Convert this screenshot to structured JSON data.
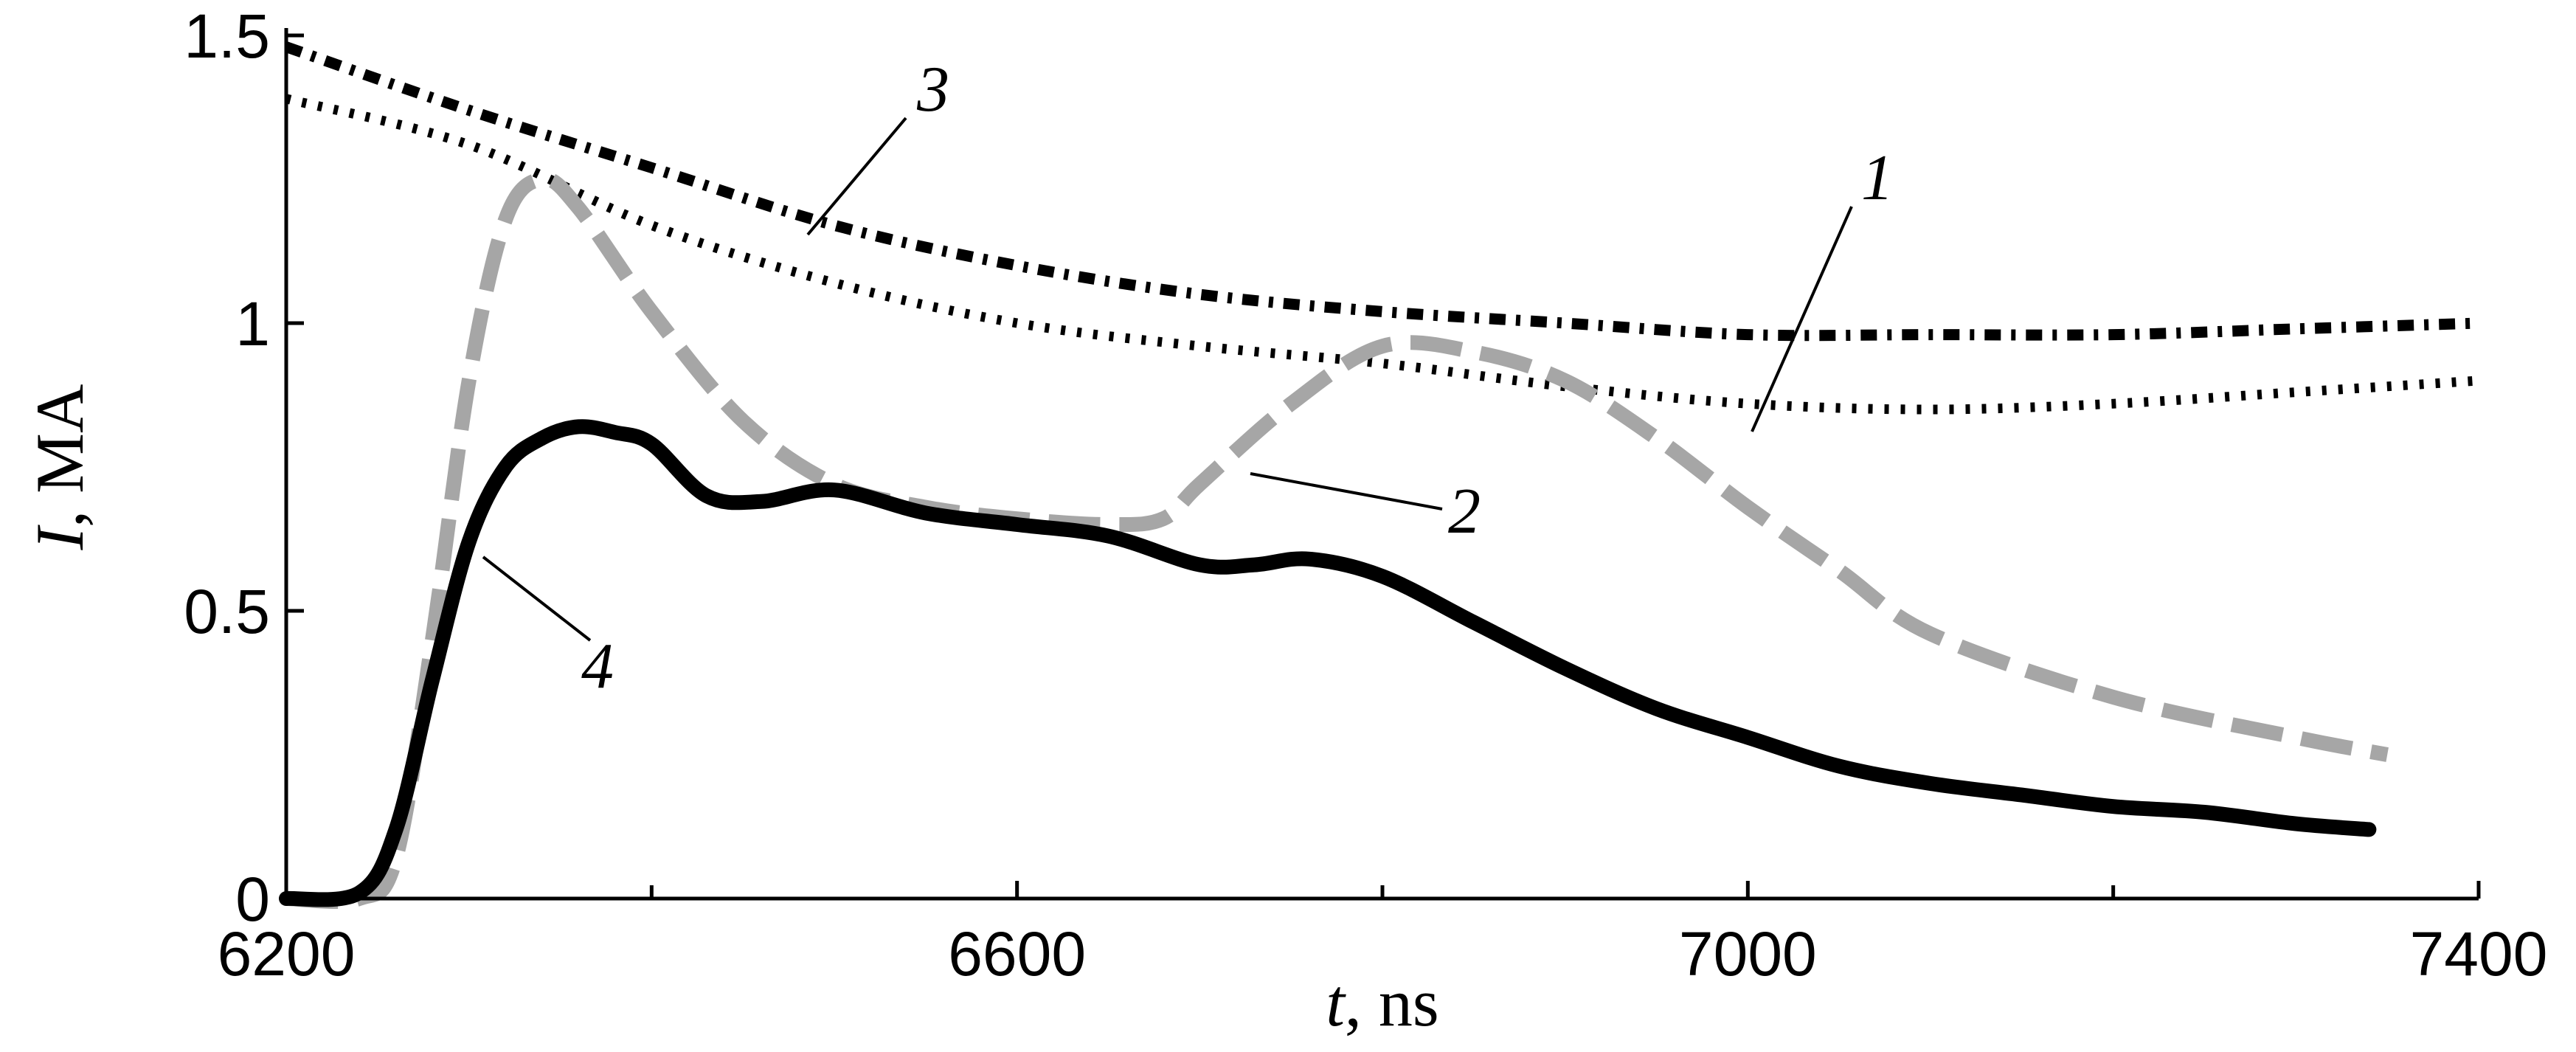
{
  "chart_data": {
    "type": "line",
    "xlabel": "t, ns",
    "xlabel_var": "t",
    "xlabel_unit": ", ns",
    "ylabel": "I, MA",
    "ylabel_var": "I",
    "ylabel_unit": ", MA",
    "xlim": [
      6200,
      7400
    ],
    "ylim": [
      0,
      1.5
    ],
    "xticks": [
      6200,
      6600,
      7000,
      7400
    ],
    "xtick_labels": [
      "6200",
      "6600",
      "7000",
      "7400"
    ],
    "x_minor_ticks": [
      6400,
      6800,
      7200
    ],
    "yticks": [
      0,
      0.5,
      1,
      1.5
    ],
    "ytick_labels": [
      "0",
      "0.5",
      "1",
      "1.5"
    ],
    "grid": false,
    "legend": "none",
    "series": [
      {
        "name": "1",
        "style": "dotted",
        "color": "#000000",
        "x": [
          6200,
          6300,
          6400,
          6500,
          6600,
          6700,
          6800,
          6900,
          7000,
          7100,
          7200,
          7300,
          7400
        ],
        "y": [
          1.39,
          1.31,
          1.17,
          1.07,
          1.0,
          0.96,
          0.93,
          0.89,
          0.86,
          0.85,
          0.86,
          0.88,
          0.9
        ]
      },
      {
        "name": "2",
        "style": "dashed",
        "color": "#a6a6a6",
        "x": [
          6200,
          6240,
          6260,
          6280,
          6300,
          6320,
          6340,
          6360,
          6400,
          6450,
          6500,
          6550,
          6600,
          6650,
          6680,
          6700,
          6750,
          6800,
          6850,
          6900,
          6950,
          7000,
          7050,
          7100,
          7200,
          7300,
          7350
        ],
        "y": [
          0.0,
          0.0,
          0.07,
          0.45,
          0.9,
          1.18,
          1.25,
          1.2,
          1.02,
          0.83,
          0.72,
          0.68,
          0.66,
          0.65,
          0.66,
          0.72,
          0.86,
          0.96,
          0.95,
          0.9,
          0.8,
          0.68,
          0.57,
          0.46,
          0.35,
          0.28,
          0.25
        ]
      },
      {
        "name": "3",
        "style": "dash-dot",
        "color": "#000000",
        "x": [
          6200,
          6300,
          6400,
          6500,
          6600,
          6700,
          6800,
          6900,
          7000,
          7100,
          7200,
          7300,
          7400
        ],
        "y": [
          1.48,
          1.37,
          1.27,
          1.17,
          1.1,
          1.05,
          1.02,
          1.0,
          0.98,
          0.98,
          0.98,
          0.99,
          1.0
        ]
      },
      {
        "name": "4",
        "style": "solid",
        "color": "#000000",
        "x": [
          6200,
          6240,
          6260,
          6280,
          6300,
          6320,
          6340,
          6360,
          6380,
          6400,
          6430,
          6460,
          6500,
          6550,
          6600,
          6650,
          6700,
          6730,
          6760,
          6800,
          6850,
          6900,
          6950,
          7000,
          7050,
          7100,
          7150,
          7200,
          7250,
          7300,
          7340
        ],
        "y": [
          0.0,
          0.01,
          0.12,
          0.38,
          0.62,
          0.75,
          0.8,
          0.82,
          0.81,
          0.79,
          0.7,
          0.69,
          0.71,
          0.67,
          0.65,
          0.63,
          0.58,
          0.58,
          0.59,
          0.56,
          0.48,
          0.4,
          0.33,
          0.28,
          0.23,
          0.2,
          0.18,
          0.16,
          0.15,
          0.13,
          0.12
        ]
      }
    ]
  }
}
